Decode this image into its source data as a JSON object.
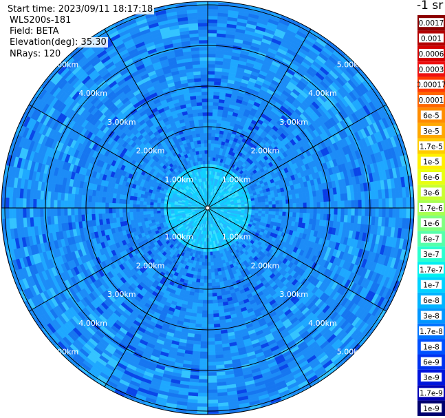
{
  "info": {
    "start_time": "Start time: 2023/09/11 18:17:18",
    "device": "WLS200s-181",
    "field": "Field: BETA",
    "elevation": "Elevation(deg): 35.30",
    "nrays": "NRays: 120"
  },
  "chart_data": {
    "type": "heatmap",
    "projection": "polar",
    "range_rings_km": [
      1,
      2,
      3,
      4,
      5
    ],
    "ring_labels": [
      "1.00km",
      "2.00km",
      "3.00km",
      "4.00km",
      "5.00km"
    ],
    "radial_lines_deg": [
      0,
      30,
      60,
      90,
      120,
      150,
      180,
      210,
      240,
      270,
      300,
      330
    ],
    "max_range_km": 5.1,
    "n_rays": 120,
    "dominant_values": {
      "inner_1km": "1.7e-7 to 6e-8",
      "mid_1_to_3km": "6e-8 to 3e-8",
      "outer_3_to_5km": "3e-8 to 1.7e-8"
    },
    "colorbar": {
      "title": "-1 sr",
      "labels": [
        "0.0017",
        "0.001",
        "0.0006",
        "0.0003",
        "0.00017",
        "0.0001",
        "6e-5",
        "3e-5",
        "1.7e-5",
        "1e-5",
        "6e-6",
        "3e-6",
        "1.7e-6",
        "1e-6",
        "6e-7",
        "3e-7",
        "1.7e-7",
        "1e-7",
        "6e-8",
        "3e-8",
        "1.7e-8",
        "1e-8",
        "6e-9",
        "3e-9",
        "1.7e-9",
        "1e-9"
      ],
      "colors": [
        "#8b0000",
        "#b30000",
        "#d40000",
        "#ee1010",
        "#ff3a00",
        "#ff6600",
        "#ff8c00",
        "#ffa800",
        "#ffcc00",
        "#fff000",
        "#e8ff10",
        "#c8ff30",
        "#a6ff50",
        "#80ff80",
        "#55ffaa",
        "#2affd0",
        "#00f0f0",
        "#00d2ff",
        "#00b4ff",
        "#0096ff",
        "#0073ff",
        "#0050ff",
        "#0032f0",
        "#0014dc",
        "#0000b4",
        "#00006e"
      ]
    }
  }
}
